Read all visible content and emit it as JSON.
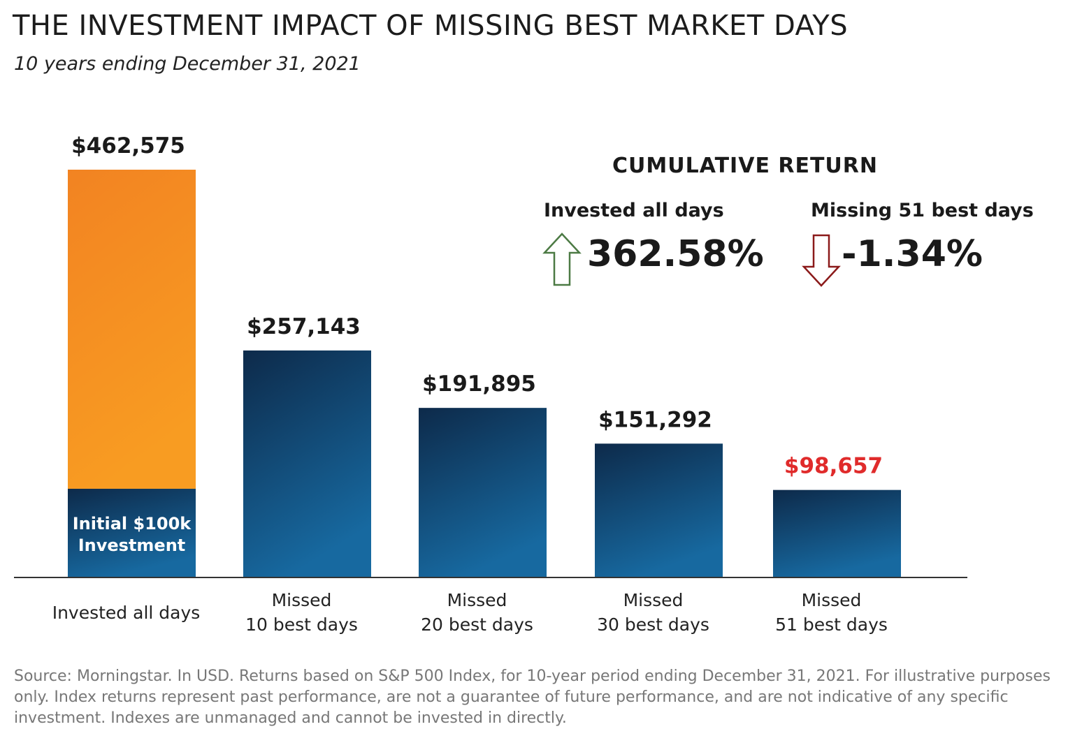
{
  "title": "THE INVESTMENT IMPACT OF MISSING BEST MARKET DAYS",
  "subtitle": "10 years ending December 31, 2021",
  "chart_data": {
    "type": "bar",
    "categories": [
      [
        "Invested all days"
      ],
      [
        "Missed",
        "10 best days"
      ],
      [
        "Missed",
        "20 best days"
      ],
      [
        "Missed",
        "30 best days"
      ],
      [
        "Missed",
        "51 best days"
      ]
    ],
    "values": [
      462575,
      257143,
      191895,
      151292,
      98657
    ],
    "value_labels": [
      "$462,575",
      "$257,143",
      "$191,895",
      "$151,292",
      "$98,657"
    ],
    "initial_investment": 100000,
    "initial_investment_label": [
      "Initial $100k",
      "Investment"
    ],
    "ylim": [
      0,
      462575
    ],
    "grid": false,
    "colors": {
      "invested_growth": "#F7941D",
      "bar_top": "#0D2A4A",
      "bar_bottom": "#1769A0",
      "negative_label": "#E02B2B",
      "label": "#1a1a1a"
    }
  },
  "cumulative": {
    "title": "CUMULATIVE RETURN",
    "items": [
      {
        "label": "Invested all days",
        "value": "362.58%",
        "direction": "up",
        "arrow_icon": "arrow-up-icon",
        "color": "#4C7A44"
      },
      {
        "label": "Missing 51 best days",
        "value": "-1.34%",
        "direction": "down",
        "arrow_icon": "arrow-down-icon",
        "color": "#8B1A1A"
      }
    ]
  },
  "source": "Source: Morningstar. In USD. Returns based on S&P 500 Index, for 10-year period ending December 31, 2021. For illustrative purposes only. Index returns represent past performance, are not a guarantee of future performance, and are not indicative of any specific investment. Indexes are unmanaged and cannot be invested in directly."
}
